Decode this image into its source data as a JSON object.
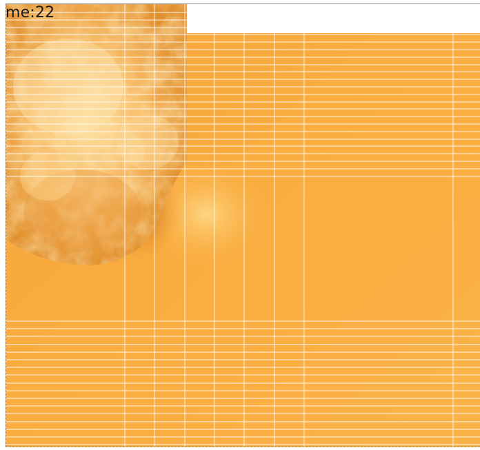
{
  "overlay": {
    "time_label": "me:22"
  },
  "colors": {
    "fluid_base": "#fbb043",
    "fluid_light": "#fdd27e",
    "fluid_shadow": "#e8841e",
    "fluid_dark": "#c9661a",
    "grid_lines": "#ffffff",
    "page_background": "#ffffff"
  }
}
